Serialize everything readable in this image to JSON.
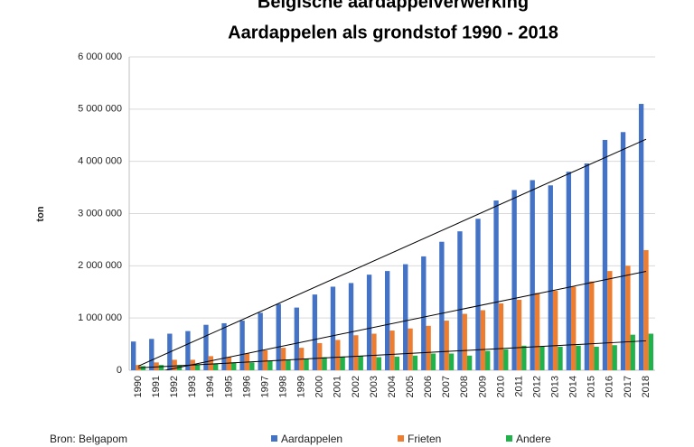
{
  "chart_data": {
    "type": "bar",
    "title": "Belgische aardappelverwerking",
    "subtitle": "Aardappelen als grondstof 1990 - 2018",
    "y_label": "ton",
    "source": "Bron: Belgapom",
    "categories": [
      "1990",
      "1991",
      "1992",
      "1993",
      "1994",
      "1995",
      "1996",
      "1997",
      "1998",
      "1999",
      "2000",
      "2001",
      "2002",
      "2003",
      "2004",
      "2005",
      "2006",
      "2007",
      "2008",
      "2009",
      "2010",
      "2011",
      "2012",
      "2013",
      "2014",
      "2015",
      "2016",
      "2017",
      "2018"
    ],
    "series": [
      {
        "name": "Aardappelen",
        "color": "#4472c4",
        "values": [
          550000,
          600000,
          700000,
          750000,
          870000,
          900000,
          950000,
          1100000,
          1270000,
          1200000,
          1450000,
          1600000,
          1670000,
          1830000,
          1900000,
          2030000,
          2180000,
          2460000,
          2660000,
          2900000,
          3250000,
          3450000,
          3640000,
          3540000,
          3800000,
          3960000,
          4410000,
          4560000,
          5100000
        ]
      },
      {
        "name": "Frieten",
        "color": "#ed7d31",
        "values": [
          100000,
          150000,
          200000,
          200000,
          270000,
          250000,
          320000,
          380000,
          430000,
          430000,
          520000,
          580000,
          670000,
          700000,
          760000,
          800000,
          850000,
          950000,
          1080000,
          1150000,
          1280000,
          1350000,
          1480000,
          1520000,
          1600000,
          1700000,
          1900000,
          2000000,
          2300000
        ]
      },
      {
        "name": "Andere",
        "color": "#21b24b",
        "values": [
          80000,
          100000,
          100000,
          100000,
          130000,
          150000,
          150000,
          180000,
          200000,
          220000,
          250000,
          260000,
          270000,
          250000,
          260000,
          280000,
          320000,
          320000,
          280000,
          370000,
          400000,
          470000,
          450000,
          450000,
          470000,
          450000,
          480000,
          680000,
          700000
        ]
      }
    ],
    "ylim": [
      0,
      6000000
    ],
    "yticks": [
      0,
      {
        "value": 1000000,
        "label": "1 000 000"
      },
      {
        "value": 2000000,
        "label": "2 000 000"
      },
      {
        "value": 3000000,
        "label": "3 000 000"
      },
      {
        "value": 4000000,
        "label": "4 000 000"
      },
      {
        "value": 5000000,
        "label": "5 000 000"
      },
      {
        "value": 6000000,
        "label": "6 000 000"
      }
    ],
    "grid": true,
    "trendline": true,
    "legend": "bottom"
  }
}
